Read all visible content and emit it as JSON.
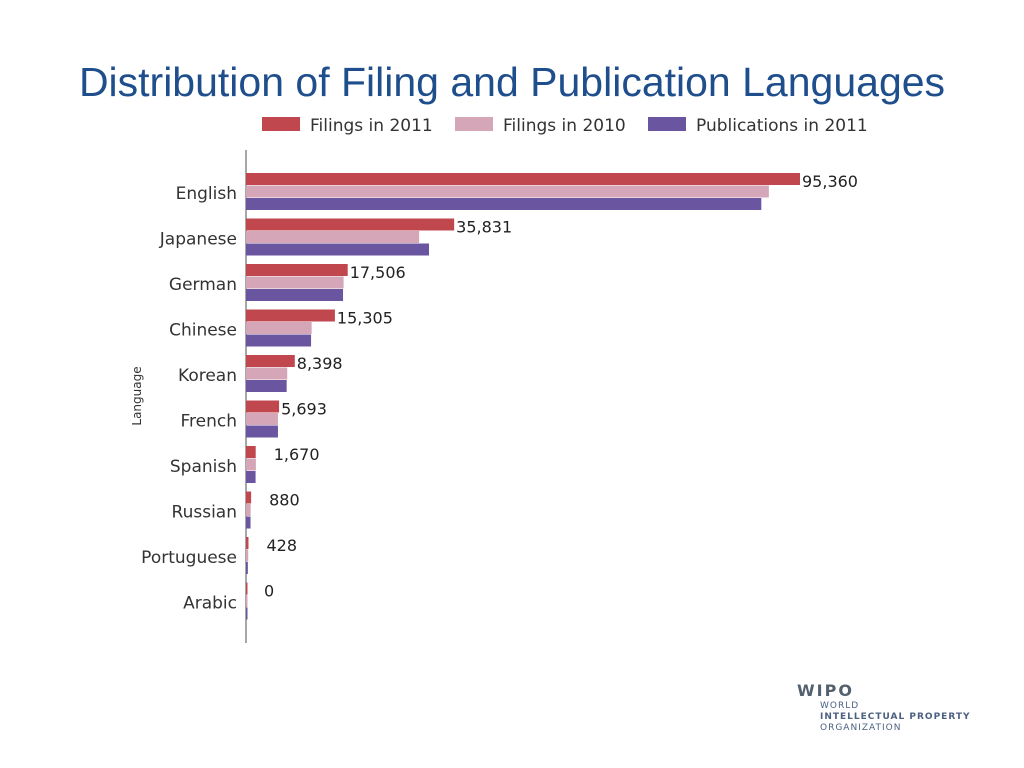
{
  "slide": {
    "title": "Distribution of Filing and Publication Languages"
  },
  "logo": {
    "name": "WIPO",
    "line1": "WORLD",
    "line2": "INTELLECTUAL PROPERTY",
    "line3": "ORGANIZATION"
  },
  "chart_data": {
    "type": "bar",
    "orientation": "horizontal",
    "title": "",
    "xlabel": "",
    "ylabel": "Language",
    "xlim": [
      0,
      100000
    ],
    "grid": false,
    "legend_position": "top",
    "categories": [
      "English",
      "Japanese",
      "German",
      "Chinese",
      "Korean",
      "French",
      "Spanish",
      "Russian",
      "Portuguese",
      "Arabic"
    ],
    "series": [
      {
        "name": "Filings in 2011",
        "color": "#c1474f",
        "values": [
          95360,
          35831,
          17506,
          15305,
          8398,
          5693,
          1670,
          880,
          428,
          0
        ]
      },
      {
        "name": "Filings in 2010",
        "color": "#d4a6b8",
        "values": [
          90000,
          29800,
          16800,
          11300,
          7100,
          5500,
          1700,
          800,
          380,
          50
        ]
      },
      {
        "name": "Publications in 2011",
        "color": "#6a56a0",
        "values": [
          88700,
          31500,
          16700,
          11200,
          7000,
          5500,
          1650,
          780,
          320,
          40
        ]
      }
    ],
    "data_labels": [
      "95,360",
      "35,831",
      "17,506",
      "15,305",
      "8,398",
      "5,693",
      "1,670",
      "880",
      "428",
      "0"
    ],
    "axis_color": "#8a8a8a",
    "label_color": "#333333"
  }
}
